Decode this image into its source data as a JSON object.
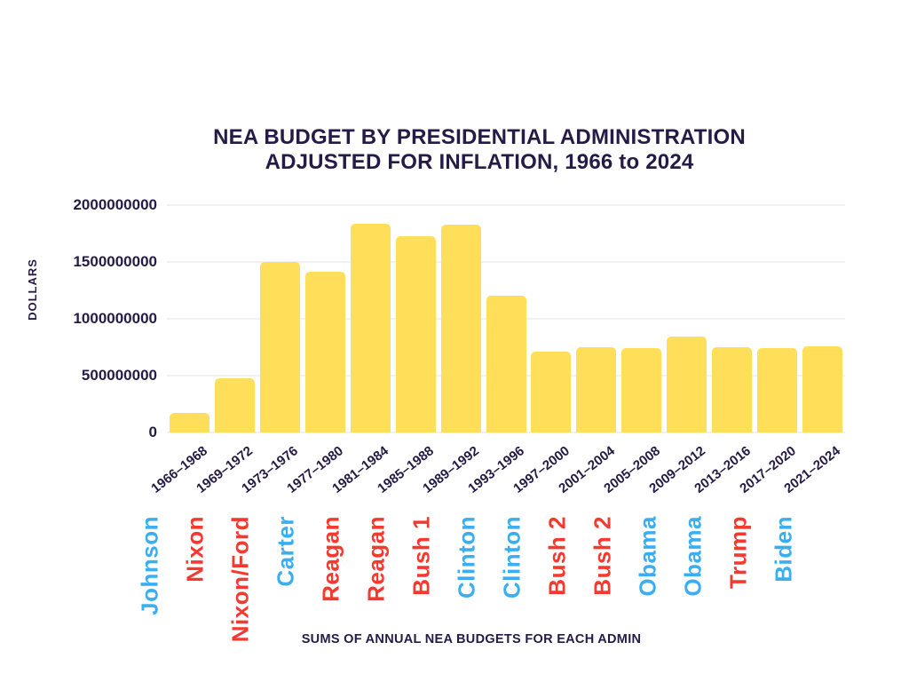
{
  "title": {
    "line1": "NEA BUDGET BY PRESIDENTIAL ADMINISTRATION",
    "line2": "ADJUSTED FOR INFLATION, 1966 to 2024"
  },
  "colors": {
    "dark": "#241B46",
    "bar": "#FFDE59",
    "grid": "#F1F1F1",
    "republican": "#F6392E",
    "democrat": "#3BAEF2"
  },
  "chart_data": {
    "type": "bar",
    "title": "NEA BUDGET BY PRESIDENTIAL ADMINISTRATION ADJUSTED FOR INFLATION, 1966 to 2024",
    "xlabel": "SUMS OF ANNUAL NEA BUDGETS FOR EACH ADMIN",
    "ylabel": "DOLLARS",
    "ylim": [
      0,
      2000000000
    ],
    "yticks": [
      0,
      500000000,
      1000000000,
      1500000000,
      2000000000
    ],
    "grid": true,
    "legend": false,
    "bar_color": "#FFDE59",
    "categories": [
      "1966–1968",
      "1969–1972",
      "1973–1976",
      "1977–1980",
      "1981–1984",
      "1985–1988",
      "1989–1992",
      "1993–1996",
      "1997–2000",
      "2001–2004",
      "2005–2008",
      "2009–2012",
      "2013–2016",
      "2017–2020",
      "2021–2024"
    ],
    "values": [
      170000000,
      480000000,
      1500000000,
      1415000000,
      1835000000,
      1730000000,
      1825000000,
      1200000000,
      710000000,
      750000000,
      745000000,
      845000000,
      750000000,
      745000000,
      760000000
    ],
    "presidents": [
      {
        "name": "Johnson",
        "party": "democrat"
      },
      {
        "name": "Nixon",
        "party": "republican"
      },
      {
        "name": "Nixon/Ford",
        "party": "republican"
      },
      {
        "name": "Carter",
        "party": "democrat"
      },
      {
        "name": "Reagan",
        "party": "republican"
      },
      {
        "name": "Reagan",
        "party": "republican"
      },
      {
        "name": "Bush 1",
        "party": "republican"
      },
      {
        "name": "Clinton",
        "party": "democrat"
      },
      {
        "name": "Clinton",
        "party": "democrat"
      },
      {
        "name": "Bush 2",
        "party": "republican"
      },
      {
        "name": "Bush 2",
        "party": "republican"
      },
      {
        "name": "Obama",
        "party": "democrat"
      },
      {
        "name": "Obama",
        "party": "democrat"
      },
      {
        "name": "Trump",
        "party": "republican"
      },
      {
        "name": "Biden",
        "party": "democrat"
      }
    ]
  }
}
